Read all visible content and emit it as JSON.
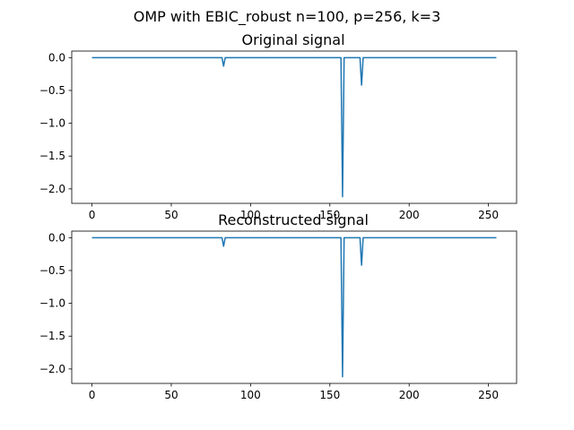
{
  "figure": {
    "suptitle": "OMP with EBIC_robust n=100, p=256, k=3",
    "background": "#ffffff",
    "line_color": "#1f77b4"
  },
  "chart_data": [
    {
      "type": "line",
      "title": "Original signal",
      "xlabel": "",
      "ylabel": "",
      "xlim": [
        -12.75,
        267.75
      ],
      "ylim": [
        -2.22,
        0.1
      ],
      "xticks": [
        0,
        50,
        100,
        150,
        200,
        250
      ],
      "yticks": [
        0.0,
        -0.5,
        -1.0,
        -1.5,
        -2.0
      ],
      "xtick_labels": [
        "0",
        "50",
        "100",
        "150",
        "200",
        "250"
      ],
      "ytick_labels": [
        "0.0",
        "−0.5",
        "−1.0",
        "−1.5",
        "−2.0"
      ],
      "grid": false,
      "series": [
        {
          "x": [
            0,
            82,
            83,
            84,
            157,
            158,
            159,
            169,
            170,
            171,
            255
          ],
          "values": [
            0,
            0,
            -0.13,
            0,
            0,
            -2.12,
            0,
            0,
            -0.42,
            0,
            0
          ]
        }
      ]
    },
    {
      "type": "line",
      "title": "Reconstructed signal",
      "xlabel": "",
      "ylabel": "",
      "xlim": [
        -12.75,
        267.75
      ],
      "ylim": [
        -2.22,
        0.1
      ],
      "xticks": [
        0,
        50,
        100,
        150,
        200,
        250
      ],
      "yticks": [
        0.0,
        -0.5,
        -1.0,
        -1.5,
        -2.0
      ],
      "xtick_labels": [
        "0",
        "50",
        "100",
        "150",
        "200",
        "250"
      ],
      "ytick_labels": [
        "0.0",
        "−0.5",
        "−1.0",
        "−1.5",
        "−2.0"
      ],
      "grid": false,
      "series": [
        {
          "x": [
            0,
            82,
            83,
            84,
            157,
            158,
            159,
            169,
            170,
            171,
            255
          ],
          "values": [
            0,
            0,
            -0.13,
            0,
            0,
            -2.12,
            0,
            0,
            -0.42,
            0,
            0
          ]
        }
      ]
    }
  ]
}
